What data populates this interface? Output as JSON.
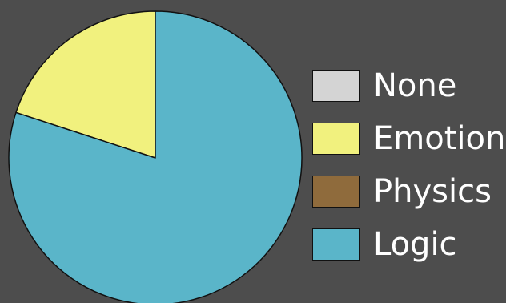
{
  "chart_data": {
    "type": "pie",
    "categories": [
      "None",
      "Emotion",
      "Physics",
      "Logic"
    ],
    "values": [
      0,
      20,
      0,
      80
    ],
    "colors": [
      "#d4d4d4",
      "#f1f17e",
      "#8f6b3c",
      "#5ab5c9"
    ],
    "legend_position": "right",
    "title": ""
  },
  "legend": {
    "items": [
      {
        "label": "None",
        "color": "#d4d4d4"
      },
      {
        "label": "Emotion",
        "color": "#f1f17e"
      },
      {
        "label": "Physics",
        "color": "#8f6b3c"
      },
      {
        "label": "Logic",
        "color": "#5ab5c9"
      }
    ]
  },
  "colors": {
    "background": "#4d4d4d",
    "outline": "#111111",
    "label_text": "#ffffff"
  }
}
